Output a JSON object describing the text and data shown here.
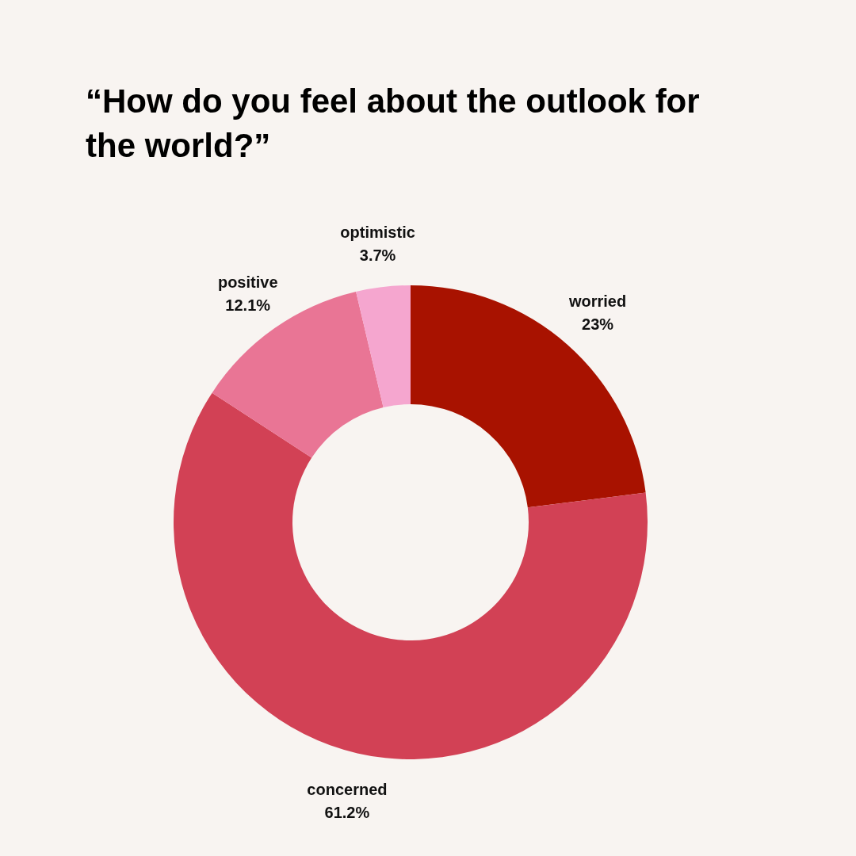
{
  "chart_data": {
    "type": "donut",
    "title": "“How do you feel about the outlook for the world?”",
    "categories": [
      "worried",
      "concerned",
      "positive",
      "optimistic"
    ],
    "values": [
      23,
      61.2,
      12.1,
      3.7
    ],
    "colors": [
      "#a81200",
      "#d24155",
      "#e97595",
      "#f5a6cf"
    ],
    "value_labels": [
      "23%",
      "61.2%",
      "12.1%",
      "3.7%"
    ]
  }
}
